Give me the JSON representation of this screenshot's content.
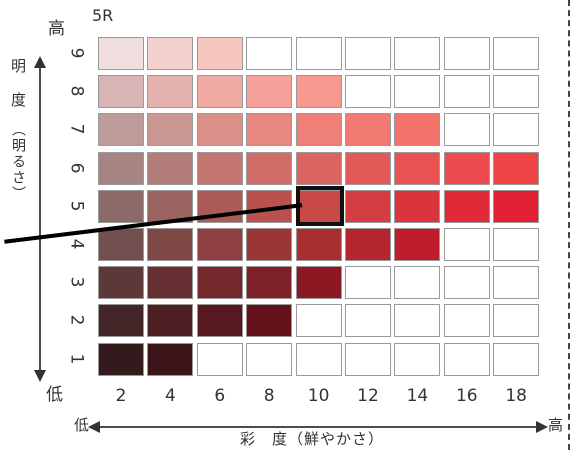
{
  "hue": "5R",
  "value_axis": {
    "high": "高",
    "low": "低",
    "title": "明　度",
    "paren": "（明るさ）"
  },
  "chroma_axis": {
    "low": "低",
    "high": "高",
    "title": "彩　度（鮮やかさ）"
  },
  "values": [
    "9",
    "8",
    "7",
    "6",
    "5",
    "4",
    "3",
    "2",
    "1"
  ],
  "chromas": [
    "2",
    "4",
    "6",
    "8",
    "10",
    "12",
    "14",
    "16",
    "18"
  ],
  "highlight": {
    "value": "5",
    "chroma": "10"
  },
  "grid": [
    [
      "#f1dede",
      "#f3d1ce",
      "#f7c6bf",
      "#ffffff",
      "#ffffff",
      "#ffffff",
      "#ffffff",
      "#ffffff",
      "#ffffff"
    ],
    [
      "#d8b5b4",
      "#e5b1ad",
      "#f0aaa4",
      "#f6a29a",
      "#f7998f",
      "#ffffff",
      "#ffffff",
      "#ffffff",
      "#ffffff"
    ],
    [
      "#bc9b99",
      "#cb9792",
      "#da8f88",
      "#e6887f",
      "#ee8077",
      "#f27a72",
      "#f3736b",
      "#ffffff",
      "#ffffff"
    ],
    [
      "#a58482",
      "#b37e79",
      "#c37670",
      "#d06d67",
      "#da645f",
      "#e25a58",
      "#e85352",
      "#ec4a4c",
      "#ee4446"
    ],
    [
      "#8c6a68",
      "#9b6461",
      "#ab5a58",
      "#ba514f",
      "#c94947",
      "#d43d41",
      "#dc343c",
      "#e02a37",
      "#e31f36"
    ],
    [
      "#72504f",
      "#7f4847",
      "#8e3f40",
      "#9b3637",
      "#a92e30",
      "#b5252d",
      "#be1e2c",
      "#ffffff",
      "#ffffff"
    ],
    [
      "#5c3839",
      "#683033",
      "#72282c",
      "#7e2027",
      "#8b1822",
      "#ffffff",
      "#ffffff",
      "#ffffff",
      "#ffffff"
    ],
    [
      "#432628",
      "#4d1e22",
      "#581820",
      "#64111b",
      "#ffffff",
      "#ffffff",
      "#ffffff",
      "#ffffff",
      "#ffffff"
    ],
    [
      "#331b1d",
      "#3b1519",
      "#ffffff",
      "#ffffff",
      "#ffffff",
      "#ffffff",
      "#ffffff",
      "#ffffff",
      "#ffffff"
    ]
  ]
}
